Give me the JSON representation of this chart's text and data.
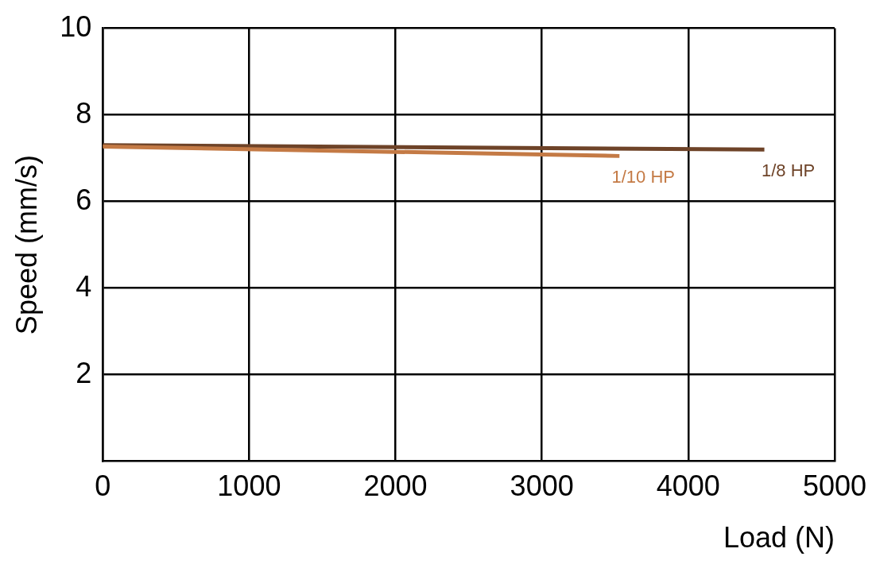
{
  "chart_data": {
    "type": "line",
    "xlabel": "Load (N)",
    "ylabel": "Speed (mm/s)",
    "xlim": [
      0,
      5000
    ],
    "xticks": [
      0,
      1000,
      2000,
      3000,
      4000,
      5000
    ],
    "ylim": [
      0,
      10
    ],
    "yticks": [
      2,
      4,
      6,
      8,
      10
    ],
    "grid": true,
    "legend": false,
    "marker": "none",
    "line_style": "solid",
    "series": [
      {
        "name": "1/10 HP",
        "color": "#c47a45",
        "x": [
          0,
          3530
        ],
        "values": [
          7.27,
          7.05
        ]
      },
      {
        "name": "1/8 HP",
        "color": "#6e4328",
        "x": [
          0,
          4520
        ],
        "values": [
          7.3,
          7.2
        ]
      }
    ]
  }
}
